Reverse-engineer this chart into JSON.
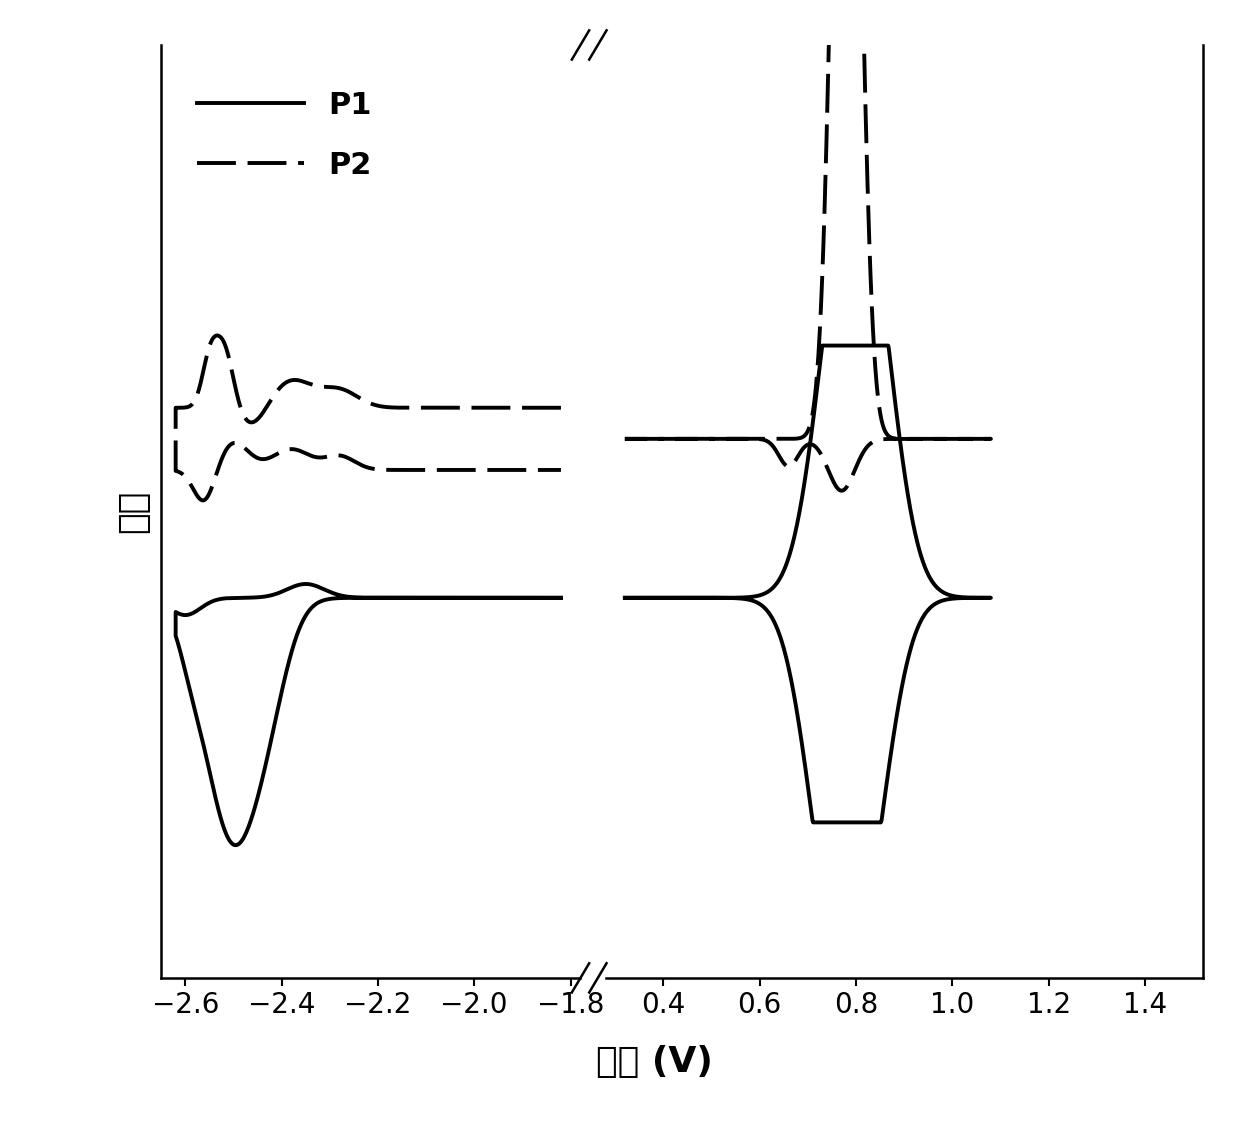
{
  "title": "",
  "xlabel": "电势 (V)",
  "ylabel": "电流",
  "line_color": "#000000",
  "linewidth": 2.8,
  "xlabel_fontsize": 26,
  "ylabel_fontsize": 26,
  "tick_fontsize": 20,
  "legend_fontsize": 22,
  "xticks_left": [
    -2.6,
    -2.4,
    -2.2,
    -2.0,
    -1.8
  ],
  "xticks_right": [
    0.4,
    0.6,
    0.8,
    1.0,
    1.2,
    1.4
  ],
  "background_color": "#ffffff",
  "ylim": [
    -1.1,
    1.6
  ],
  "left_xlim": [
    -2.65,
    -1.78
  ],
  "right_xlim": [
    0.28,
    1.52
  ]
}
